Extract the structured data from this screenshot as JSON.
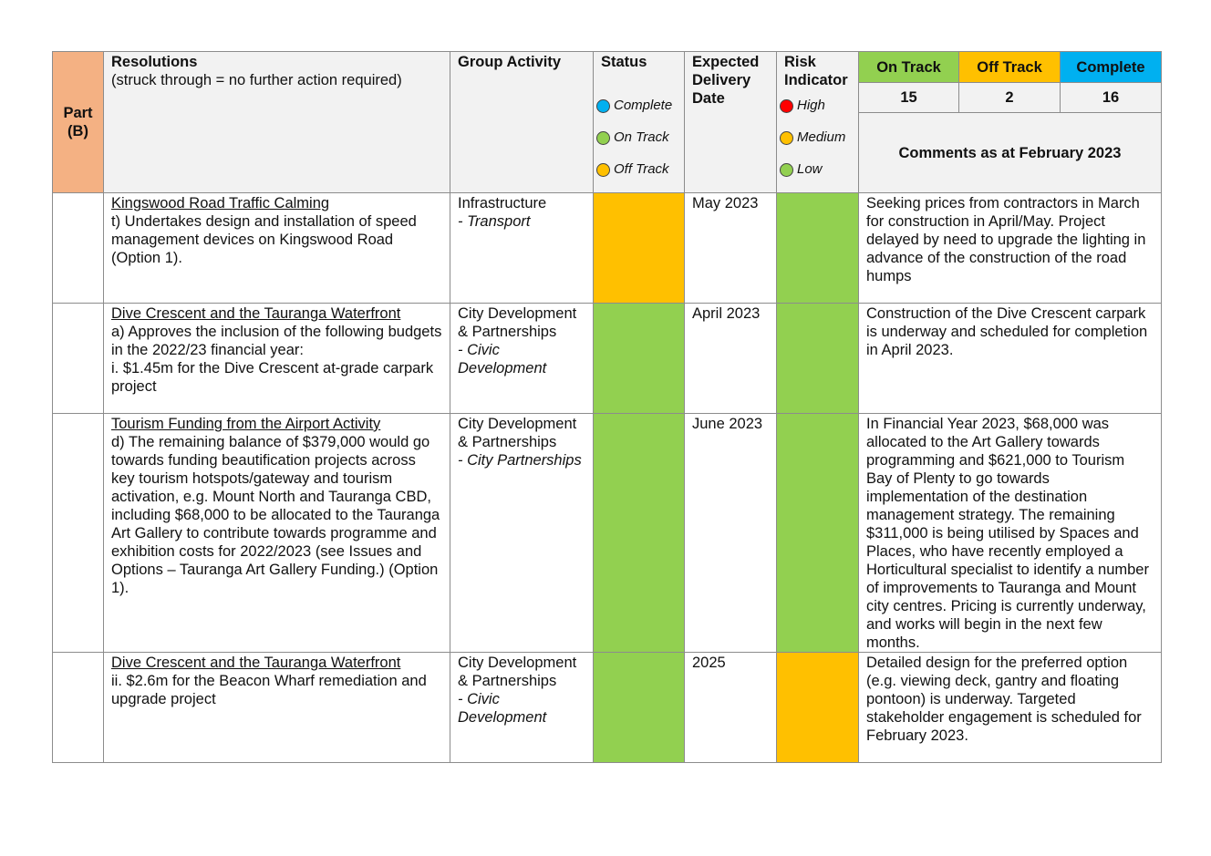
{
  "colors": {
    "part_bg": "#f4b183",
    "header_bg": "#f2f2f2",
    "on_track": "#92d050",
    "off_track": "#ffc000",
    "complete": "#00b0f0",
    "high": "#ff0000"
  },
  "header": {
    "part": "Part (B)",
    "resolutions_title": "Resolutions",
    "resolutions_note": "(struck through = no further action required)",
    "group_activity": "Group Activity",
    "status": "Status",
    "status_legend": [
      "Complete",
      "On Track",
      "Off Track"
    ],
    "expected_delivery": "Expected Delivery Date",
    "risk_indicator": "Risk Indicator",
    "risk_legend": [
      "High",
      "Medium",
      "Low"
    ],
    "summary": {
      "on_track_label": "On Track",
      "off_track_label": "Off Track",
      "complete_label": "Complete",
      "on_track_count": "15",
      "off_track_count": "2",
      "complete_count": "16"
    },
    "comments_title": "Comments as at February 2023"
  },
  "rows": [
    {
      "title": "Kingswood Road Traffic Calming",
      "body": "t) Undertakes design and installation of speed management devices on Kingswood Road (Option 1).",
      "group": "Infrastructure",
      "activity": "- Transport",
      "status": "off_track",
      "date": "May 2023",
      "risk": "low",
      "comment": "Seeking prices from contractors in March for construction in April/May. Project delayed by need to upgrade the lighting in advance of the construction of the road humps"
    },
    {
      "title": "Dive Crescent and the Tauranga Waterfront",
      "body": "a) Approves the inclusion of the following budgets in the 2022/23 financial year:",
      "body2": "i.  $1.45m for the Dive Crescent at-grade carpark project",
      "group": "City Development & Partnerships",
      "activity": "- Civic Development",
      "status": "on_track",
      "date": "April 2023",
      "risk": "low",
      "comment": "Construction of the Dive Crescent carpark is underway and scheduled for completion in April 2023."
    },
    {
      "title": "Tourism Funding from the Airport Activity",
      "body": "d)  The remaining balance of $379,000 would go towards funding beautification projects across key tourism hotspots/gateway and tourism activation, e.g. Mount North and Tauranga CBD, including $68,000 to be allocated to the Tauranga Art Gallery to contribute towards programme and exhibition costs for 2022/2023 (see Issues and Options – Tauranga Art Gallery Funding.) (Option 1).",
      "group": "City Development & Partnerships",
      "activity": "- City Partnerships",
      "status": "on_track",
      "date": "June 2023",
      "risk": "low",
      "comment": "In Financial Year 2023, $68,000 was allocated to the Art Gallery towards programming and $621,000 to Tourism Bay of Plenty to go towards implementation of the destination management strategy. The remaining $311,000 is being utilised by Spaces and Places, who have recently employed a Horticultural specialist to identify a number of improvements to Tauranga and Mount city centres. Pricing is currently underway, and works will begin in the next few months."
    },
    {
      "title": "Dive Crescent and the Tauranga Waterfront",
      "body": "ii.  $2.6m for the Beacon Wharf remediation and upgrade project",
      "group": "City Development & Partnerships",
      "activity": "- Civic Development",
      "status": "on_track",
      "date": "2025",
      "risk": "medium",
      "comment": "Detailed design for the preferred option (e.g. viewing deck, gantry and floating pontoon) is underway. Targeted stakeholder engagement is scheduled for February 2023."
    }
  ]
}
